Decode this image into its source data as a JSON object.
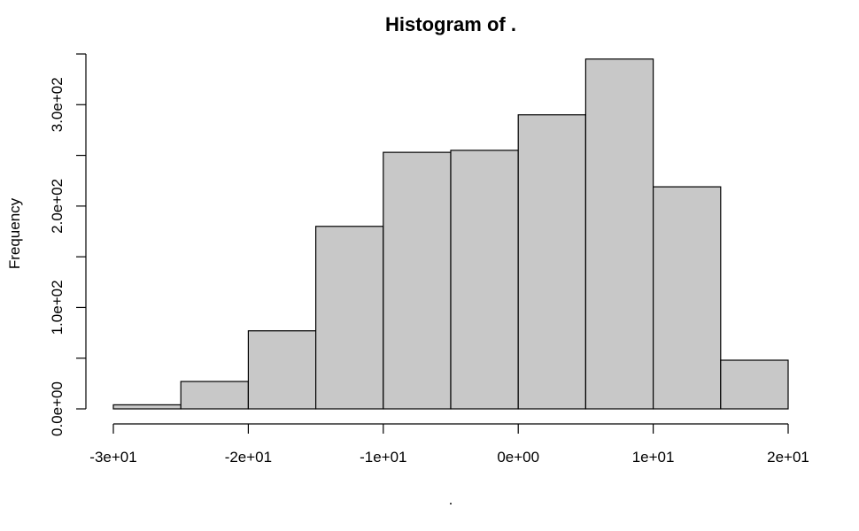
{
  "chart_data": {
    "type": "bar",
    "title": "Histogram of .",
    "xlabel": ".",
    "ylabel": "Frequency",
    "bins": [
      {
        "start": -30,
        "end": -25,
        "value": 4
      },
      {
        "start": -25,
        "end": -20,
        "value": 27
      },
      {
        "start": -20,
        "end": -15,
        "value": 77
      },
      {
        "start": -15,
        "end": -10,
        "value": 180
      },
      {
        "start": -10,
        "end": -5,
        "value": 253
      },
      {
        "start": -5,
        "end": 0,
        "value": 255
      },
      {
        "start": 0,
        "end": 5,
        "value": 290
      },
      {
        "start": 5,
        "end": 10,
        "value": 345
      },
      {
        "start": 10,
        "end": 15,
        "value": 219
      },
      {
        "start": 15,
        "end": 20,
        "value": 48
      }
    ],
    "xlim": [
      -30,
      20
    ],
    "ylim": [
      0,
      350
    ],
    "x_ticks": [
      -30,
      -20,
      -10,
      0,
      10,
      20
    ],
    "x_tick_labels": [
      "-3e+01",
      "-2e+01",
      "-1e+01",
      "0e+00",
      "1e+01",
      "2e+01"
    ],
    "y_ticks": [
      0,
      50,
      100,
      150,
      200,
      250,
      300,
      350
    ],
    "y_tick_labels": [
      "0.0e+00",
      "",
      "1.0e+02",
      "",
      "2.0e+02",
      "",
      "3.0e+02",
      ""
    ],
    "colors": {
      "bar_fill": "#c8c8c8",
      "bar_stroke": "#000000",
      "axis": "#000000",
      "text": "#000000"
    },
    "grid": false
  }
}
